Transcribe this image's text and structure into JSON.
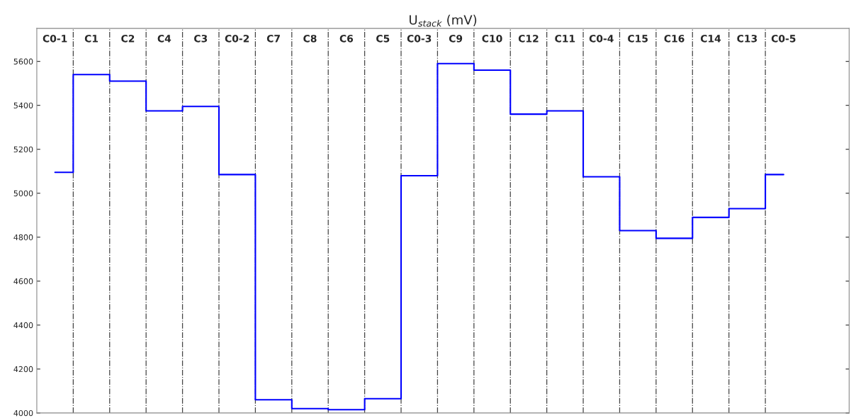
{
  "chart_data": {
    "type": "step",
    "title": "U$_{stack}$ (mV)",
    "categories": [
      "C0-1",
      "C1",
      "C2",
      "C4",
      "C3",
      "C0-2",
      "C7",
      "C8",
      "C6",
      "C5",
      "C0-3",
      "C9",
      "C10",
      "C12",
      "C11",
      "C0-4",
      "C15",
      "C16",
      "C14",
      "C13",
      "C0-5"
    ],
    "series": [
      {
        "color": "#0000ff",
        "values": [
          5095,
          5540,
          5510,
          5375,
          5395,
          5085,
          4060,
          4020,
          4015,
          4065,
          5080,
          5590,
          5560,
          5360,
          5375,
          5075,
          4830,
          4795,
          4890,
          4930,
          5085
        ]
      }
    ],
    "ylim": [
      4000,
      5750
    ],
    "yticks": [
      4000,
      4200,
      4400,
      4600,
      4800,
      5000,
      5200,
      5400,
      5600
    ],
    "grid": "x",
    "tick_labels": "y"
  }
}
